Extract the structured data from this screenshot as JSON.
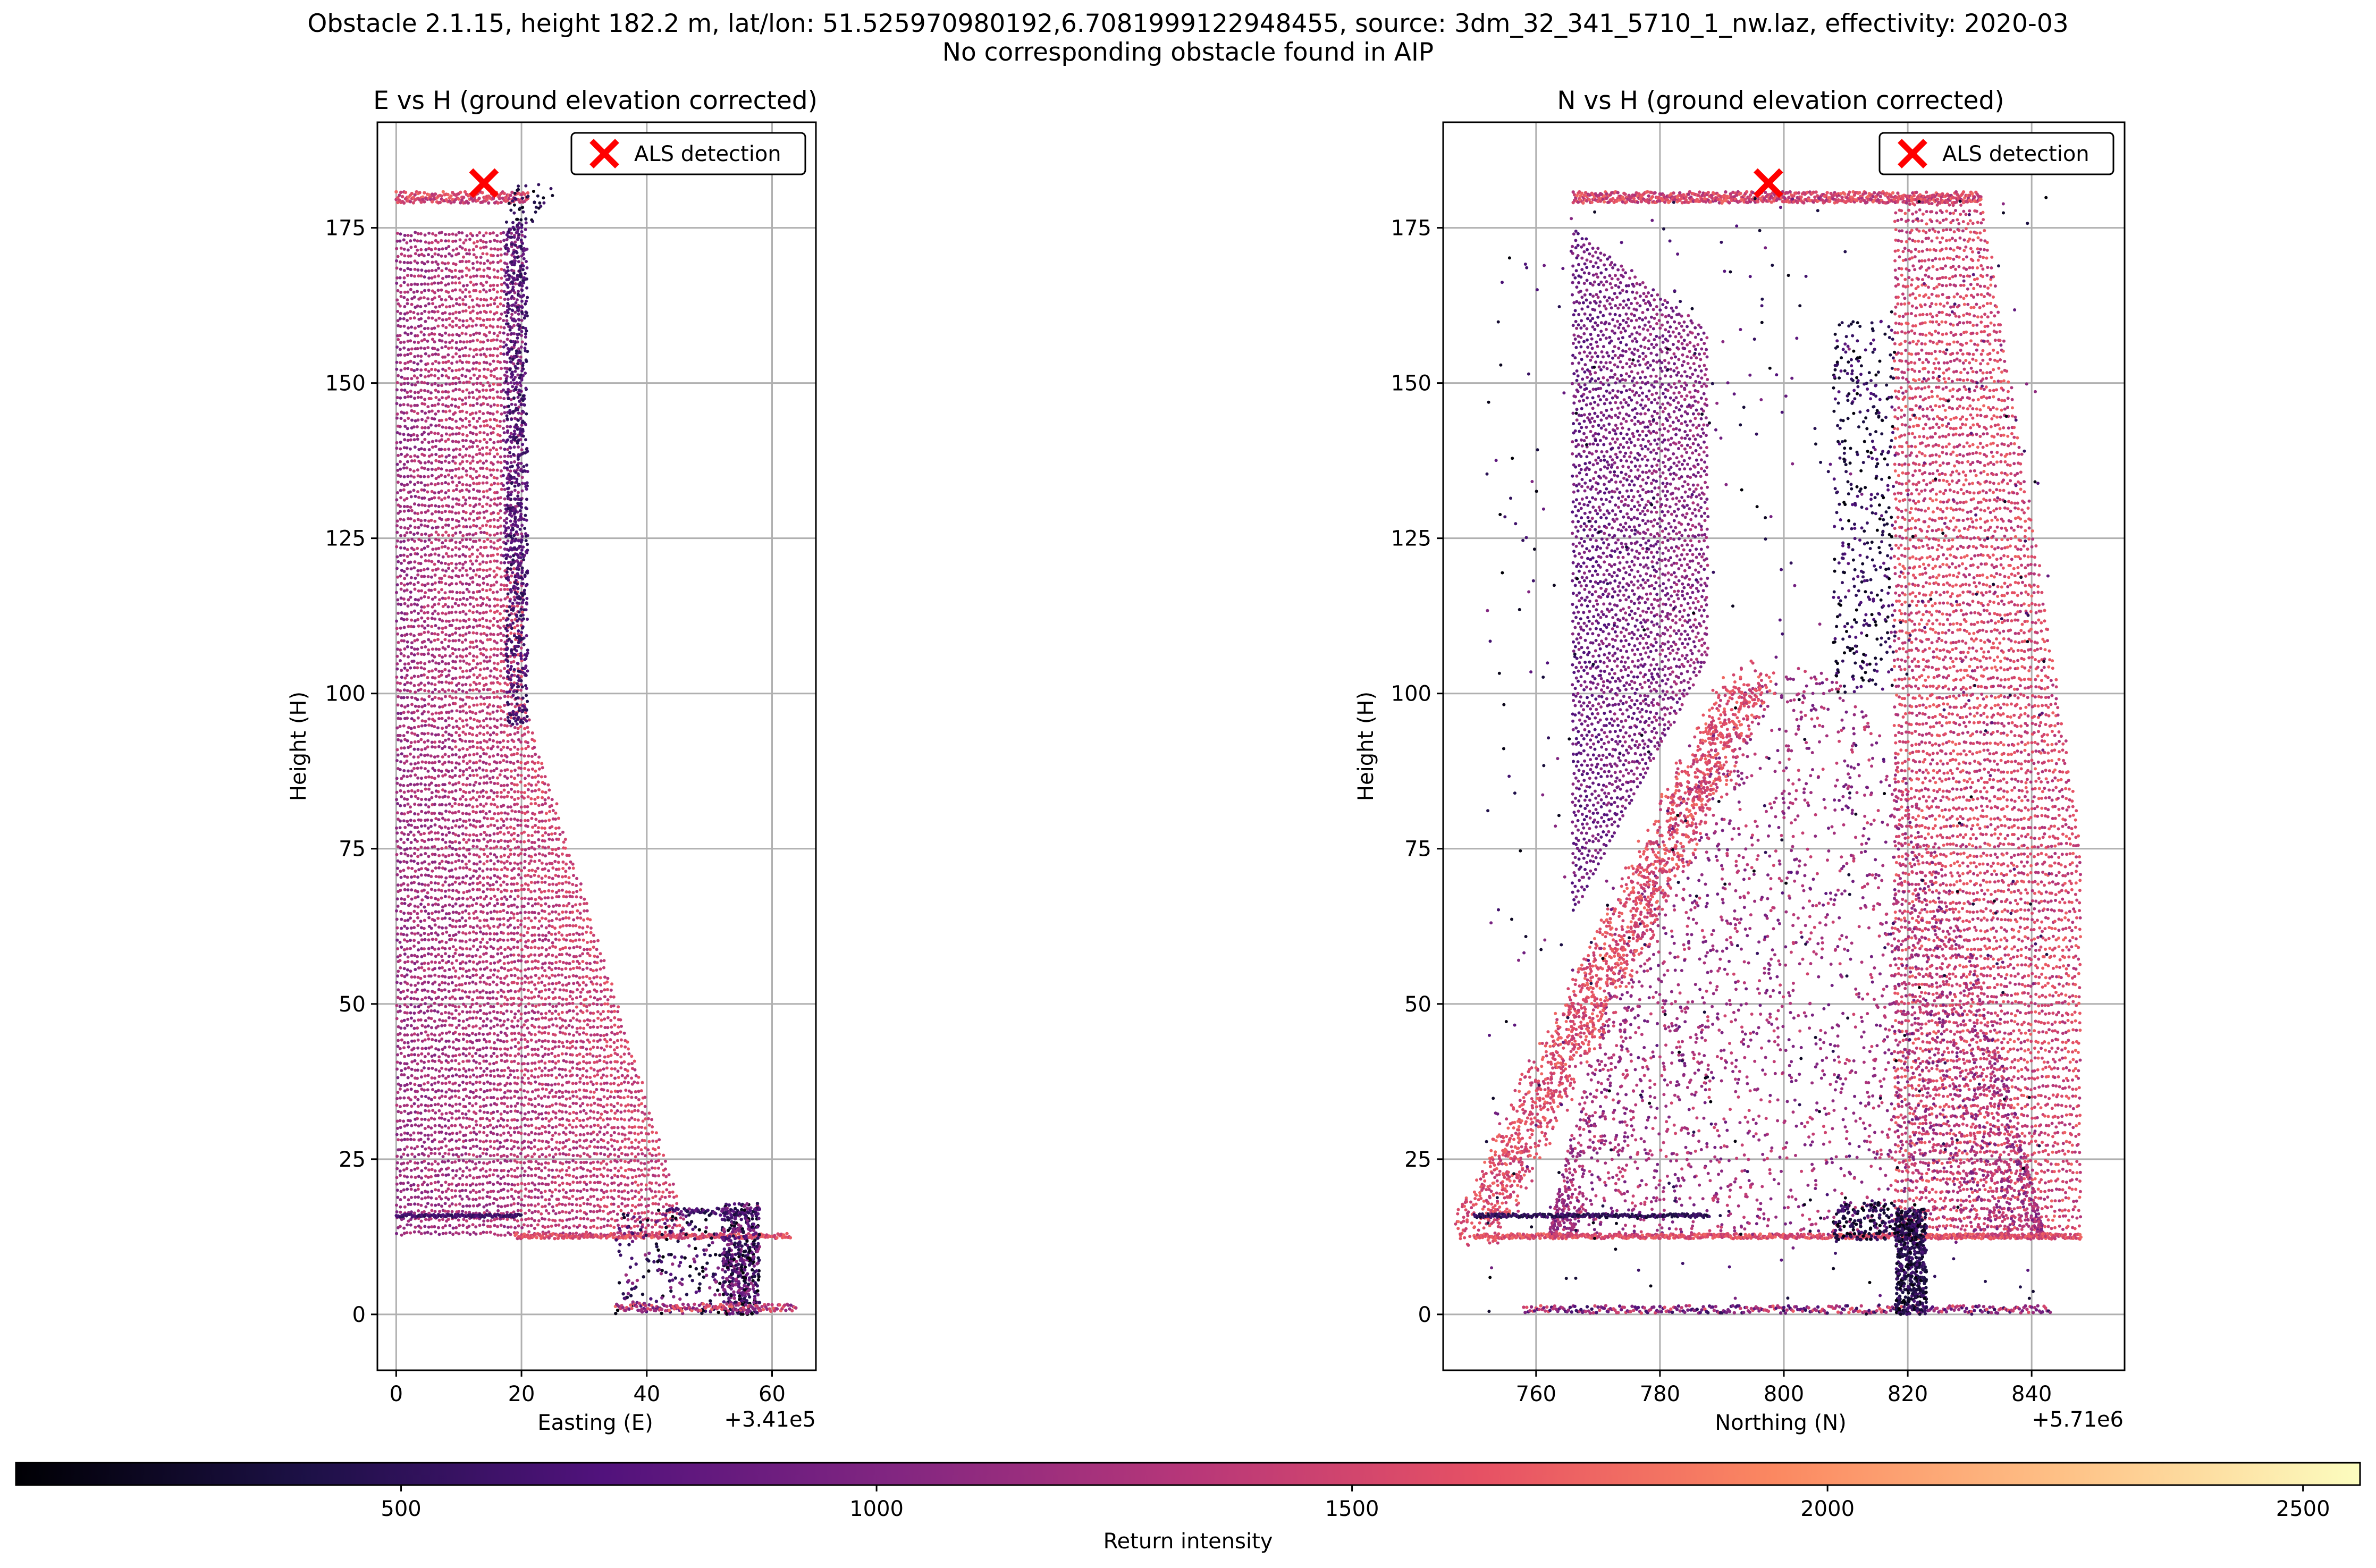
{
  "figure": {
    "title_line1": "Obstacle 2.1.15, height 182.2 m, lat/lon: 51.525970980192,6.7081999122948455, source: 3dm_32_341_5710_1_nw.laz, effectivity: 2020-03",
    "title_line2": "No corresponding obstacle found in AIP"
  },
  "colorbar": {
    "label": "Return intensity",
    "range": [
      95,
      2560
    ],
    "ticks": [
      500,
      1000,
      1500,
      2000,
      2500
    ],
    "colormap": "magma",
    "colors": [
      "#000004",
      "#1d1147",
      "#51127c",
      "#822681",
      "#b73779",
      "#e65164",
      "#fb8861",
      "#fec287",
      "#fcfdbf"
    ]
  },
  "chart_data": [
    {
      "type": "scatter",
      "title": "E vs H (ground elevation corrected)",
      "xlabel": "Easting (E)",
      "ylabel": "Height (H)",
      "x_offset_label": "+3.41e5",
      "xlim": [
        -3,
        67
      ],
      "ylim": [
        -9,
        192
      ],
      "xticks": [
        0,
        20,
        40,
        60
      ],
      "yticks": [
        0,
        25,
        50,
        75,
        100,
        125,
        150,
        175
      ],
      "grid": true,
      "legend": {
        "label": "ALS detection",
        "position": "top-right"
      },
      "detection": {
        "x": 14,
        "y": 182.2
      },
      "point_cloud_regions": [
        {
          "region": "main body",
          "x_range_at_top": [
            0,
            20
          ],
          "x_range_at_bottom": [
            0,
            47
          ],
          "y_range": [
            12,
            175
          ],
          "intensity_range": [
            900,
            1700
          ]
        },
        {
          "region": "top platform",
          "x_range": [
            0,
            21
          ],
          "y_range": [
            179,
            181
          ],
          "intensity_range": [
            1300,
            1800
          ]
        },
        {
          "region": "right edge (dense dark)",
          "x_range": [
            18,
            21
          ],
          "y_range": [
            100,
            175
          ],
          "intensity_range": [
            500,
            900
          ]
        },
        {
          "region": "base slab",
          "x_range": [
            20,
            63
          ],
          "y_range": [
            12,
            13
          ],
          "intensity_range": [
            1300,
            1800
          ]
        },
        {
          "region": "horizontal line",
          "x_range": [
            0,
            20
          ],
          "y_range": [
            15.5,
            16.5
          ],
          "intensity_range": [
            400,
            800
          ]
        },
        {
          "region": "scattered base cluster",
          "x_range": [
            35,
            64
          ],
          "y_range": [
            0,
            18
          ],
          "intensity_range": [
            100,
            1700
          ]
        }
      ]
    },
    {
      "type": "scatter",
      "title": "N vs H (ground elevation corrected)",
      "xlabel": "Northing (N)",
      "ylabel": "Height (H)",
      "x_offset_label": "+5.71e6",
      "xlim": [
        745,
        855
      ],
      "ylim": [
        -9,
        192
      ],
      "xticks": [
        760,
        780,
        800,
        820,
        840
      ],
      "yticks": [
        0,
        25,
        50,
        75,
        100,
        125,
        150,
        175
      ],
      "grid": true,
      "legend": {
        "label": "ALS detection",
        "position": "top-right"
      },
      "detection": {
        "x": 797.5,
        "y": 182.2
      },
      "point_cloud_regions": [
        {
          "region": "left wall",
          "x_range": [
            766,
            788
          ],
          "y_range": [
            60,
            175
          ],
          "intensity_range": [
            500,
            1000
          ]
        },
        {
          "region": "right wall",
          "x_range": [
            820,
            848
          ],
          "y_range": [
            12,
            180
          ],
          "intensity_range": [
            1300,
            1800
          ]
        },
        {
          "region": "central arch",
          "x_range": [
            760,
            843
          ],
          "y_range": [
            12,
            95
          ],
          "intensity_range": [
            900,
            1500
          ]
        },
        {
          "region": "diagonal band",
          "x_range": [
            750,
            795
          ],
          "y_range": [
            12,
            105
          ],
          "intensity_range": [
            1300,
            1800
          ]
        },
        {
          "region": "top platform",
          "x_range": [
            766,
            832
          ],
          "y_range": [
            179,
            181
          ],
          "intensity_range": [
            1200,
            1800
          ]
        },
        {
          "region": "base slab",
          "x_range": [
            750,
            848
          ],
          "y_range": [
            12,
            13
          ],
          "intensity_range": [
            1300,
            1800
          ]
        },
        {
          "region": "horizontal line",
          "x_range": [
            750,
            788
          ],
          "y_range": [
            15.5,
            16.5
          ],
          "intensity_range": [
            300,
            700
          ]
        },
        {
          "region": "ground strip",
          "x_range": [
            758,
            843
          ],
          "y_range": [
            0,
            2
          ],
          "intensity_range": [
            500,
            1700
          ]
        }
      ]
    }
  ]
}
